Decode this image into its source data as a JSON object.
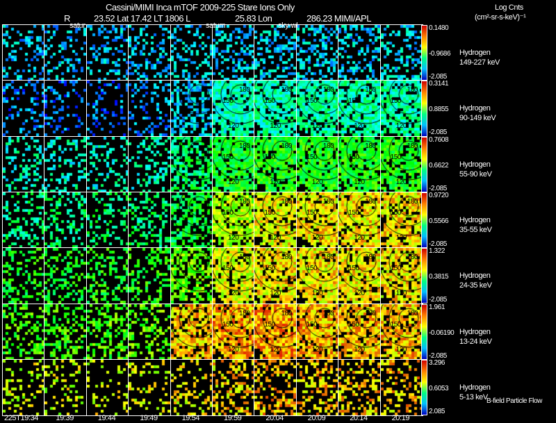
{
  "header": {
    "title": "Cassini/MIMI Inca mTOF  2009-225   Stare   Ions Only",
    "r_label": "R",
    "coords": "23.52 Lat 17.42 LT 1806 L",
    "lon": "25.83 Lon",
    "mission": "286.23  MIMI/APL",
    "units_title": "Log Cnts",
    "units": "(cm²-sr-s-keV)⁻¹"
  },
  "overlay_labels": [
    "satur",
    "saturn",
    "sky-wl"
  ],
  "footer": {
    "legend": "B-field Particle Flow"
  },
  "chart_data": {
    "type": "heatmap",
    "title": "Cassini/MIMI Inca mTOF  2009-225   Stare   Ions Only",
    "x_ticks": [
      "225T19:34",
      "19:39",
      "19:44",
      "19:49",
      "19:54",
      "19:59",
      "20:04",
      "20:09",
      "20:14",
      "20:19"
    ],
    "contour_labels": [
      "180",
      "150",
      "120",
      "90"
    ],
    "rows": [
      {
        "species": "Hydrogen",
        "energy": "149-227 keV",
        "cmax": "0.1480",
        "cmid": "-0.9686",
        "cmin": "-2.085",
        "level": [
          0.2,
          0.2,
          0.2,
          0.2,
          0.22,
          0.22,
          0.22,
          0.22,
          0.22,
          0.22
        ],
        "coverage": [
          0.3,
          0.3,
          0.3,
          0.3,
          0.35,
          0.4,
          0.4,
          0.4,
          0.4,
          0.35
        ]
      },
      {
        "species": "Hydrogen",
        "energy": "90-149 keV",
        "cmax": "0.3141",
        "cmid": "0.8855",
        "cmin": "-2.085",
        "level": [
          0.12,
          0.12,
          0.12,
          0.14,
          0.22,
          0.32,
          0.34,
          0.34,
          0.34,
          0.34
        ],
        "coverage": [
          0.25,
          0.25,
          0.25,
          0.3,
          0.55,
          0.85,
          0.85,
          0.85,
          0.85,
          0.8
        ]
      },
      {
        "species": "Hydrogen",
        "energy": "55-90 keV",
        "cmax": "0.7608",
        "cmid": "0.6622",
        "cmin": "-2.085",
        "level": [
          0.3,
          0.3,
          0.3,
          0.32,
          0.4,
          0.48,
          0.5,
          0.5,
          0.5,
          0.5
        ],
        "coverage": [
          0.3,
          0.3,
          0.3,
          0.3,
          0.55,
          0.85,
          0.85,
          0.85,
          0.85,
          0.8
        ]
      },
      {
        "species": "Hydrogen",
        "energy": "35-55 keV",
        "cmax": "0.9720",
        "cmid": "0.5566",
        "cmin": "-2.085",
        "level": [
          0.38,
          0.38,
          0.4,
          0.4,
          0.45,
          0.66,
          0.74,
          0.76,
          0.76,
          0.76
        ],
        "coverage": [
          0.35,
          0.35,
          0.35,
          0.35,
          0.55,
          0.85,
          0.85,
          0.85,
          0.85,
          0.8
        ]
      },
      {
        "species": "Hydrogen",
        "energy": "24-35 keV",
        "cmax": "1.322",
        "cmid": "0.3815",
        "cmin": "-2.085",
        "level": [
          0.48,
          0.48,
          0.5,
          0.5,
          0.6,
          0.72,
          0.76,
          0.76,
          0.76,
          0.76
        ],
        "coverage": [
          0.35,
          0.35,
          0.35,
          0.35,
          0.55,
          0.85,
          0.85,
          0.85,
          0.85,
          0.8
        ]
      },
      {
        "species": "Hydrogen",
        "energy": "13-24 keV",
        "cmax": "1.961",
        "cmid": "-0.06190",
        "cmin": "-2.085",
        "level": [
          0.55,
          0.55,
          0.56,
          0.58,
          0.8,
          0.84,
          0.84,
          0.82,
          0.8,
          0.8
        ],
        "coverage": [
          0.4,
          0.4,
          0.4,
          0.4,
          0.8,
          0.9,
          0.9,
          0.85,
          0.85,
          0.8
        ]
      },
      {
        "species": "Hydrogen",
        "energy": "5-13 keV",
        "cmax": "3.296",
        "cmid": "0.6053",
        "cmin": "2.085",
        "level": [
          0.7,
          0.7,
          0.72,
          0.72,
          0.74,
          0.78,
          0.8,
          0.8,
          0.8,
          0.8
        ],
        "coverage": [
          0.2,
          0.25,
          0.2,
          0.2,
          0.25,
          0.4,
          0.4,
          0.4,
          0.35,
          0.3
        ]
      }
    ]
  }
}
